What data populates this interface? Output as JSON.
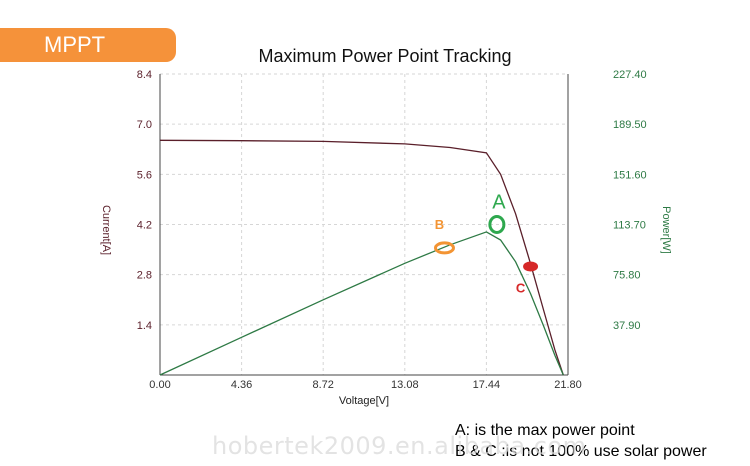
{
  "badge": {
    "label": "MPPT"
  },
  "chart_data": {
    "type": "line",
    "title": "Maximum Power Point Tracking",
    "xlabel": "Voltage[V]",
    "ylabel_left": "Current[A]",
    "ylabel_right": "Power[W]",
    "xlim": [
      0,
      21.8
    ],
    "ylim_left": [
      0,
      8.4
    ],
    "ylim_right": [
      0,
      227.4
    ],
    "x_ticks": [
      "0.00",
      "4.36",
      "8.72",
      "13.08",
      "17.44",
      "21.80"
    ],
    "y_ticks_left": [
      "1.4",
      "2.8",
      "4.2",
      "5.6",
      "7.0",
      "8.4"
    ],
    "y_ticks_right": [
      "37.90",
      "75.80",
      "113.70",
      "151.60",
      "189.50",
      "227.40"
    ],
    "grid": true,
    "series": [
      {
        "axis": "left",
        "color": "#5a1f2a",
        "x": [
          0,
          4.36,
          8.72,
          13.08,
          15.5,
          17.44,
          18.2,
          19.0,
          19.8,
          20.5,
          21.1,
          21.55
        ],
        "y": [
          6.55,
          6.54,
          6.52,
          6.45,
          6.35,
          6.2,
          5.6,
          4.5,
          3.1,
          1.8,
          0.7,
          0.0
        ]
      },
      {
        "axis": "right",
        "color": "#2e7a45",
        "x": [
          0,
          4.36,
          8.72,
          13.08,
          15.5,
          17.44,
          18.2,
          19.0,
          19.8,
          20.5,
          21.1,
          21.55
        ],
        "y": [
          0,
          28.5,
          56.8,
          84.4,
          98.4,
          108.1,
          102.0,
          85.5,
          61.4,
          36.9,
          14.8,
          0
        ]
      }
    ],
    "annotations": [
      {
        "label": "A",
        "x": 18.0,
        "y_right": 113.7,
        "color": "#2ea84e"
      },
      {
        "label": "B",
        "x": 15.2,
        "y_right": 96.0,
        "color": "#f39433"
      },
      {
        "label": "C",
        "x": 19.8,
        "y_right": 82.0,
        "color": "#d62828"
      }
    ]
  },
  "notes": {
    "line1": "A: is the max power point",
    "line2": "B & C :is not 100% use solar power"
  },
  "watermark": "hobertek2009.en.alibaba.com"
}
